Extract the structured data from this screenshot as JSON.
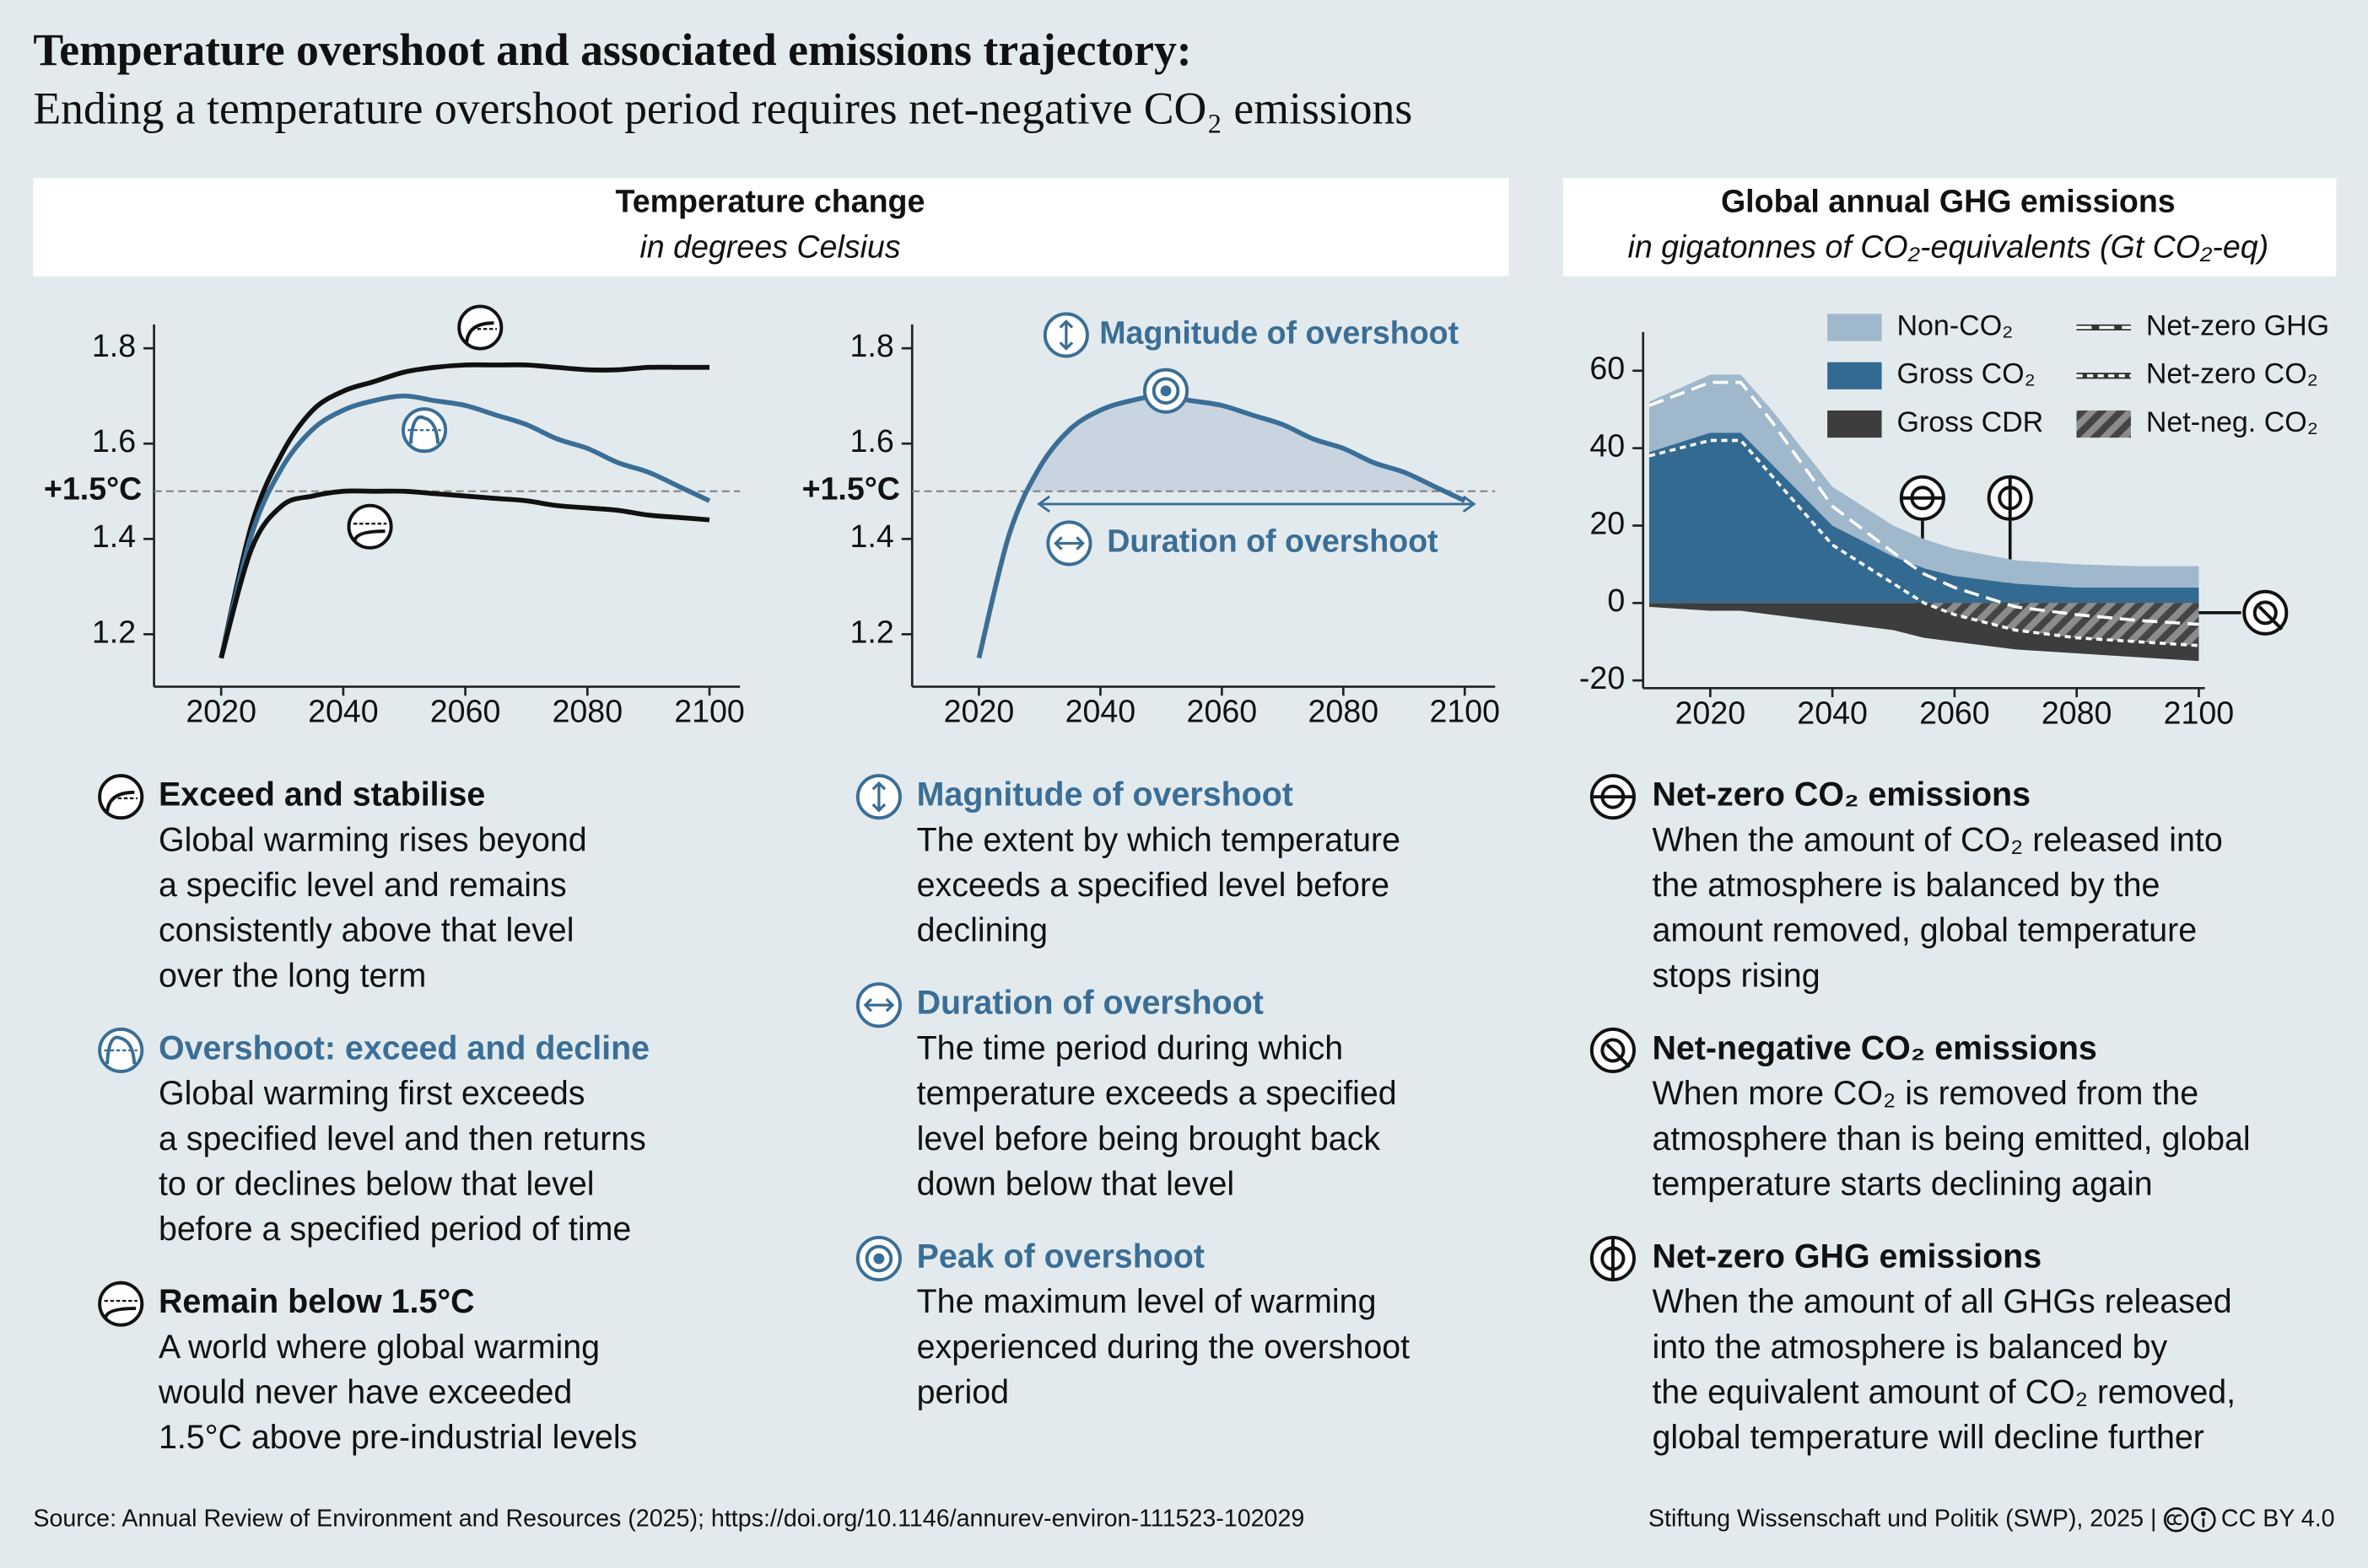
{
  "header": {
    "title": "Temperature overshoot and associated emissions trajectory:",
    "subtitle": "Ending a temperature overshoot period requires net-negative CO₂ emissions"
  },
  "panels": [
    {
      "title": "Temperature change",
      "subtitle": "in degrees Celsius"
    },
    {
      "title": "Global annual GHG emissions",
      "subtitle": "in gigatonnes of CO₂-equivalents (Gt CO₂-eq)"
    }
  ],
  "chart_data": [
    {
      "type": "line",
      "x": [
        2020,
        2025,
        2030,
        2035,
        2040,
        2045,
        2050,
        2055,
        2060,
        2065,
        2070,
        2075,
        2080,
        2085,
        2090,
        2095,
        2100
      ],
      "series": [
        {
          "name": "Exceed and stabilise",
          "color": "#111111",
          "values": [
            1.15,
            1.43,
            1.58,
            1.67,
            1.71,
            1.73,
            1.75,
            1.76,
            1.765,
            1.765,
            1.765,
            1.76,
            1.755,
            1.755,
            1.76,
            1.76,
            1.76
          ],
          "description": [
            "Global warming rises beyond",
            "a specific level and remains",
            "consistently above that level",
            "over the long term"
          ]
        },
        {
          "name": "Overshoot: exceed and decline",
          "color": "#3a6e96",
          "values": [
            1.15,
            1.41,
            1.55,
            1.63,
            1.67,
            1.69,
            1.7,
            1.69,
            1.68,
            1.66,
            1.64,
            1.61,
            1.59,
            1.56,
            1.54,
            1.51,
            1.48
          ],
          "description": [
            "Global warming first exceeds",
            "a specified level and then returns",
            "to or declines below that level",
            "before a specified period of time"
          ]
        },
        {
          "name": "Remain below 1.5°C",
          "color": "#111111",
          "values": [
            1.15,
            1.38,
            1.47,
            1.49,
            1.5,
            1.5,
            1.5,
            1.495,
            1.49,
            1.485,
            1.48,
            1.47,
            1.465,
            1.46,
            1.45,
            1.445,
            1.44
          ],
          "description": [
            "A world where global warming",
            "would never have exceeded",
            "1.5°C above pre-industrial levels"
          ]
        }
      ],
      "xlim": [
        2009,
        2105
      ],
      "ylim": [
        1.09,
        1.85
      ],
      "xticks": [
        2020,
        2040,
        2060,
        2080,
        2100
      ],
      "yticks": [
        1.2,
        1.4,
        1.6,
        1.8
      ],
      "threshold": {
        "value": 1.5,
        "label": "+1.5°C"
      }
    },
    {
      "type": "line",
      "x": [
        2020,
        2025,
        2030,
        2035,
        2040,
        2045,
        2050,
        2055,
        2060,
        2065,
        2070,
        2075,
        2080,
        2085,
        2090,
        2095,
        2100
      ],
      "series": [
        {
          "color": "#3a6e96",
          "values": [
            1.15,
            1.41,
            1.55,
            1.63,
            1.67,
            1.69,
            1.7,
            1.69,
            1.68,
            1.66,
            1.64,
            1.61,
            1.59,
            1.56,
            1.54,
            1.51,
            1.48
          ]
        }
      ],
      "fill_above_threshold": true,
      "fill_color": "#c8d5e0",
      "xlim": [
        2009,
        2105
      ],
      "ylim": [
        1.09,
        1.85
      ],
      "xticks": [
        2020,
        2040,
        2060,
        2080,
        2100
      ],
      "yticks": [
        1.2,
        1.4,
        1.6,
        1.8
      ],
      "threshold": {
        "value": 1.5,
        "label": "+1.5°C"
      },
      "annotation_color": "#3a6e96",
      "annotations": [
        {
          "label": "Magnitude of overshoot",
          "lines": [
            "The extent by which temperature",
            "exceeds a specified level before",
            "declining"
          ]
        },
        {
          "label": "Duration of overshoot",
          "lines": [
            "The time period during which",
            "temperature exceeds a specified",
            "level before being brought back",
            "down below that level"
          ]
        },
        {
          "label": "Peak of overshoot",
          "lines": [
            "The maximum level of warming",
            "experienced during the overshoot",
            "period"
          ]
        }
      ]
    },
    {
      "type": "area",
      "x": [
        2010,
        2020,
        2025,
        2030,
        2040,
        2050,
        2055,
        2060,
        2070,
        2080,
        2090,
        2100
      ],
      "series": [
        {
          "name": "Non-CO₂",
          "style": "area",
          "color": "#9fb8cc",
          "values": [
            13,
            15,
            15,
            14,
            10,
            8,
            7.5,
            7,
            6,
            6,
            5.5,
            5.5
          ]
        },
        {
          "name": "Gross CO₂",
          "style": "area",
          "color": "#336a92",
          "values": [
            39,
            44,
            44,
            36,
            20,
            12,
            9,
            7,
            5,
            4,
            4,
            4
          ]
        },
        {
          "name": "Gross CDR",
          "style": "area",
          "color": "#3d3d3d",
          "values": [
            -1,
            -2,
            -2,
            -3,
            -5,
            -7,
            -9,
            -10,
            -12,
            -13,
            -14,
            -15
          ]
        },
        {
          "name": "Net-zero GHG",
          "style": "line",
          "dash": "long",
          "color": "#ffffff",
          "values": [
            51,
            57,
            57,
            47,
            25,
            13,
            7.5,
            4,
            -1,
            -3,
            -4.5,
            -5.5
          ]
        },
        {
          "name": "Net-zero CO₂",
          "style": "line",
          "dash": "short",
          "color": "#ffffff",
          "values": [
            38,
            42,
            42,
            33,
            15,
            5,
            0,
            -3,
            -7,
            -9,
            -10,
            -11
          ]
        },
        {
          "name": "Net-neg. CO₂",
          "style": "hatch",
          "color": "#8c8c8c",
          "values": [
            null,
            null,
            null,
            null,
            null,
            null,
            0,
            -3,
            -7,
            -9,
            -10,
            -11
          ]
        }
      ],
      "legend": true,
      "xlim": [
        2009,
        2101
      ],
      "ylim": [
        -22,
        70
      ],
      "xticks": [
        2020,
        2040,
        2060,
        2080,
        2100
      ],
      "yticks": [
        -20,
        0,
        20,
        40,
        60
      ],
      "definitions": [
        {
          "title": "Net-zero CO₂ emissions",
          "lines": [
            "When the amount of CO₂ released into",
            "the atmosphere is balanced by the",
            "amount removed, global temperature",
            "stops rising"
          ]
        },
        {
          "title": "Net-negative CO₂ emissions",
          "lines": [
            "When more CO₂ is removed from the",
            "atmosphere than is being emitted, global",
            "temperature starts declining again"
          ]
        },
        {
          "title": "Net-zero GHG emissions",
          "lines": [
            "When the amount of all GHGs released",
            "into the atmosphere is balanced by",
            "the equivalent amount of CO₂ removed,",
            "global temperature will decline further"
          ]
        }
      ]
    }
  ],
  "footer": {
    "source": "Source: Annual Review of Environment and Resources (2025); https://doi.org/10.1146/annurev-environ-111523-102029",
    "credit": "Stiftung Wissenschaft und Politik (SWP), 2025 |",
    "license": "CC BY 4.0"
  }
}
